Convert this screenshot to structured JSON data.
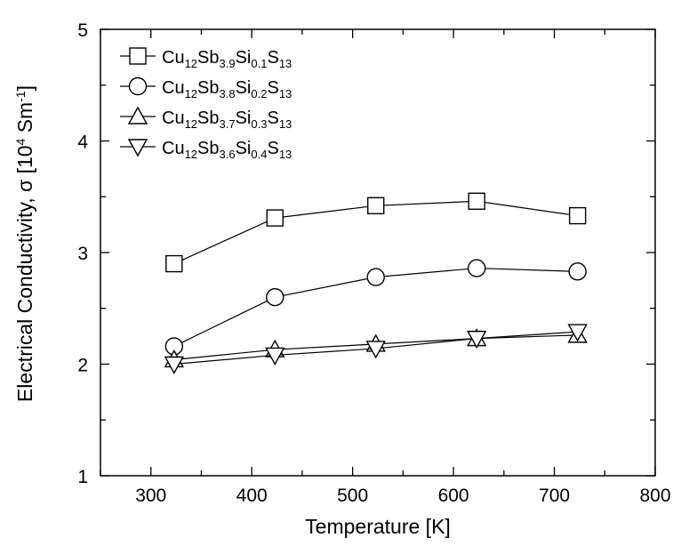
{
  "chart_data": {
    "type": "line",
    "xlabel": "Temperature [K]",
    "ylabel": {
      "text": "Electrical Conductivity, σ [10",
      "sup1": "4",
      "unit": " Sm",
      "sup2": "-1",
      "close": "]"
    },
    "xlim": [
      250,
      800
    ],
    "ylim": [
      1,
      5
    ],
    "xticks": [
      300,
      400,
      500,
      600,
      700,
      800
    ],
    "yticks": [
      1,
      2,
      3,
      4,
      5
    ],
    "grid": false,
    "legend_position": "top-left",
    "x": [
      323,
      423,
      523,
      623,
      723
    ],
    "series": [
      {
        "marker": "square",
        "label": [
          {
            "t": "Cu",
            "sub": false
          },
          {
            "t": "12",
            "sub": true
          },
          {
            "t": "Sb",
            "sub": false
          },
          {
            "t": "3.9",
            "sub": true
          },
          {
            "t": "Si",
            "sub": false
          },
          {
            "t": "0.1",
            "sub": true
          },
          {
            "t": "S",
            "sub": false
          },
          {
            "t": "13",
            "sub": true
          }
        ],
        "values": [
          2.9,
          3.31,
          3.42,
          3.46,
          3.33
        ]
      },
      {
        "marker": "circle",
        "label": [
          {
            "t": "Cu",
            "sub": false
          },
          {
            "t": "12",
            "sub": true
          },
          {
            "t": "Sb",
            "sub": false
          },
          {
            "t": "3.8",
            "sub": true
          },
          {
            "t": "Si",
            "sub": false
          },
          {
            "t": "0.2",
            "sub": true
          },
          {
            "t": "S",
            "sub": false
          },
          {
            "t": "13",
            "sub": true
          }
        ],
        "values": [
          2.16,
          2.6,
          2.78,
          2.86,
          2.83
        ]
      },
      {
        "marker": "triangle-up",
        "label": [
          {
            "t": "Cu",
            "sub": false
          },
          {
            "t": "12",
            "sub": true
          },
          {
            "t": "Sb",
            "sub": false
          },
          {
            "t": "3.7",
            "sub": true
          },
          {
            "t": "Si",
            "sub": false
          },
          {
            "t": "0.3",
            "sub": true
          },
          {
            "t": "S",
            "sub": false
          },
          {
            "t": "13",
            "sub": true
          }
        ],
        "values": [
          2.04,
          2.13,
          2.18,
          2.23,
          2.26
        ]
      },
      {
        "marker": "triangle-down",
        "label": [
          {
            "t": "Cu",
            "sub": false
          },
          {
            "t": "12",
            "sub": true
          },
          {
            "t": "Sb",
            "sub": false
          },
          {
            "t": "3.6",
            "sub": true
          },
          {
            "t": "Si",
            "sub": false
          },
          {
            "t": "0.4",
            "sub": true
          },
          {
            "t": "S",
            "sub": false
          },
          {
            "t": "13",
            "sub": true
          }
        ],
        "values": [
          2.0,
          2.08,
          2.14,
          2.23,
          2.29
        ]
      }
    ]
  }
}
